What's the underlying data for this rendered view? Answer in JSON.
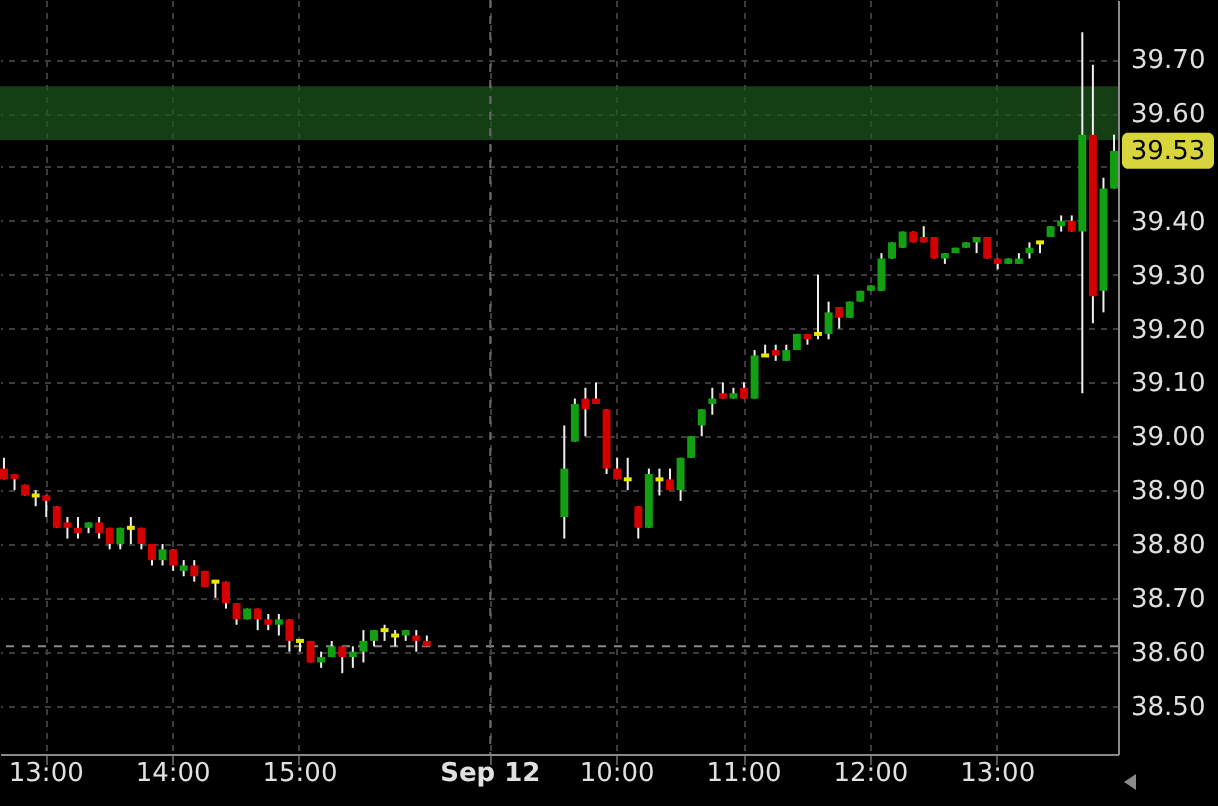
{
  "chart_data": {
    "type": "candlestick",
    "categories": [
      null,
      null,
      null,
      null,
      "13:00",
      null,
      null,
      null,
      null,
      null,
      null,
      null,
      null,
      null,
      null,
      null,
      "14:00",
      null,
      null,
      null,
      null,
      null,
      null,
      null,
      null,
      null,
      null,
      null,
      "15:00",
      null,
      null,
      null,
      null,
      null,
      null,
      null,
      null,
      null,
      null,
      null,
      null,
      null,
      null,
      null,
      null,
      null,
      "Sep 12",
      null,
      null,
      null,
      null,
      null,
      null,
      null,
      null,
      null,
      null,
      null,
      "10:00",
      null,
      null,
      null,
      null,
      null,
      null,
      null,
      null,
      null,
      null,
      null,
      "11:00",
      null,
      null,
      null,
      null,
      null,
      null,
      null,
      null,
      null,
      null,
      null,
      "12:00",
      null,
      null,
      null,
      null,
      null,
      null,
      null,
      null,
      null,
      null,
      null,
      "13:00",
      null,
      null,
      null,
      null,
      null,
      null,
      null,
      null,
      null,
      null,
      null
    ],
    "ohlc": [
      [
        38.94,
        38.96,
        38.92,
        38.92
      ],
      [
        38.93,
        38.93,
        38.9,
        38.92
      ],
      [
        38.91,
        38.91,
        38.89,
        38.89
      ],
      [
        38.89,
        38.9,
        38.87,
        38.89
      ],
      [
        38.89,
        38.89,
        38.85,
        38.88
      ],
      [
        38.87,
        38.87,
        38.83,
        38.83
      ],
      [
        38.84,
        38.85,
        38.81,
        38.83
      ],
      [
        38.83,
        38.85,
        38.81,
        38.82
      ],
      [
        38.83,
        38.84,
        38.82,
        38.84
      ],
      [
        38.84,
        38.85,
        38.81,
        38.82
      ],
      [
        38.83,
        38.83,
        38.79,
        38.8
      ],
      [
        38.8,
        38.83,
        38.79,
        38.83
      ],
      [
        38.83,
        38.85,
        38.8,
        38.83
      ],
      [
        38.83,
        38.83,
        38.79,
        38.8
      ],
      [
        38.8,
        38.8,
        38.76,
        38.77
      ],
      [
        38.77,
        38.8,
        38.76,
        38.79
      ],
      [
        38.79,
        38.79,
        38.75,
        38.76
      ],
      [
        38.75,
        38.77,
        38.74,
        38.76
      ],
      [
        38.76,
        38.77,
        38.73,
        38.74
      ],
      [
        38.75,
        38.75,
        38.72,
        38.72
      ],
      [
        38.73,
        38.73,
        38.7,
        38.73
      ],
      [
        38.73,
        38.73,
        38.68,
        38.69
      ],
      [
        38.69,
        38.69,
        38.65,
        38.66
      ],
      [
        38.66,
        38.68,
        38.66,
        38.68
      ],
      [
        38.68,
        38.68,
        38.64,
        38.66
      ],
      [
        38.66,
        38.67,
        38.64,
        38.65
      ],
      [
        38.65,
        38.67,
        38.63,
        38.66
      ],
      [
        38.66,
        38.66,
        38.6,
        38.62
      ],
      [
        38.62,
        38.62,
        38.6,
        38.62
      ],
      [
        38.62,
        38.62,
        38.58,
        38.58
      ],
      [
        38.58,
        38.6,
        38.57,
        38.59
      ],
      [
        38.59,
        38.62,
        38.59,
        38.61
      ],
      [
        38.61,
        38.61,
        38.56,
        38.59
      ],
      [
        38.59,
        38.61,
        38.57,
        38.6
      ],
      [
        38.6,
        38.64,
        38.58,
        38.62
      ],
      [
        38.62,
        38.64,
        38.61,
        38.64
      ],
      [
        38.64,
        38.65,
        38.62,
        38.64
      ],
      [
        38.63,
        38.64,
        38.61,
        38.63
      ],
      [
        38.63,
        38.64,
        38.62,
        38.64
      ],
      [
        38.63,
        38.64,
        38.6,
        38.62
      ],
      [
        38.62,
        38.63,
        38.61,
        38.61
      ],
      null,
      null,
      null,
      null,
      null,
      null,
      null,
      null,
      null,
      null,
      null,
      null,
      [
        38.85,
        39.02,
        38.81,
        38.94
      ],
      [
        38.99,
        39.07,
        38.99,
        39.06
      ],
      [
        39.07,
        39.09,
        39.0,
        39.05
      ],
      [
        39.07,
        39.1,
        39.06,
        39.06
      ],
      [
        39.05,
        39.05,
        38.93,
        38.94
      ],
      [
        38.94,
        38.96,
        38.92,
        38.92
      ],
      [
        38.92,
        38.96,
        38.9,
        38.92
      ],
      [
        38.87,
        38.87,
        38.81,
        38.83
      ],
      [
        38.83,
        38.94,
        38.83,
        38.93
      ],
      [
        38.92,
        38.94,
        38.89,
        38.92
      ],
      [
        38.92,
        38.94,
        38.9,
        38.9
      ],
      [
        38.9,
        38.96,
        38.88,
        38.96
      ],
      [
        38.96,
        39.0,
        38.96,
        39.0
      ],
      [
        39.02,
        39.05,
        39.0,
        39.05
      ],
      [
        39.06,
        39.09,
        39.04,
        39.07
      ],
      [
        39.08,
        39.1,
        39.07,
        39.07
      ],
      [
        39.07,
        39.09,
        39.07,
        39.08
      ],
      [
        39.09,
        39.1,
        39.07,
        39.07
      ],
      [
        39.07,
        39.16,
        39.07,
        39.15
      ],
      [
        39.15,
        39.17,
        39.15,
        39.15
      ],
      [
        39.16,
        39.17,
        39.14,
        39.15
      ],
      [
        39.14,
        39.17,
        39.14,
        39.16
      ],
      [
        39.16,
        39.19,
        39.16,
        39.19
      ],
      [
        39.19,
        39.19,
        39.17,
        39.18
      ],
      [
        39.19,
        39.3,
        39.18,
        39.19
      ],
      [
        39.19,
        39.25,
        39.18,
        39.23
      ],
      [
        39.24,
        39.24,
        39.2,
        39.22
      ],
      [
        39.22,
        39.25,
        39.22,
        39.25
      ],
      [
        39.25,
        39.27,
        39.25,
        39.27
      ],
      [
        39.27,
        39.28,
        39.27,
        39.28
      ],
      [
        39.27,
        39.34,
        39.27,
        39.33
      ],
      [
        39.33,
        39.36,
        39.33,
        39.36
      ],
      [
        39.35,
        39.38,
        39.35,
        39.38
      ],
      [
        39.38,
        39.38,
        39.36,
        39.36
      ],
      [
        39.37,
        39.39,
        39.36,
        39.36
      ],
      [
        39.37,
        39.37,
        39.33,
        39.33
      ],
      [
        39.33,
        39.34,
        39.32,
        39.34
      ],
      [
        39.34,
        39.35,
        39.34,
        39.35
      ],
      [
        39.35,
        39.36,
        39.35,
        39.36
      ],
      [
        39.36,
        39.37,
        39.34,
        39.37
      ],
      [
        39.37,
        39.37,
        39.33,
        39.33
      ],
      [
        39.33,
        39.33,
        39.31,
        39.32
      ],
      [
        39.32,
        39.33,
        39.32,
        39.33
      ],
      [
        39.32,
        39.34,
        39.32,
        39.33
      ],
      [
        39.34,
        39.36,
        39.33,
        39.35
      ],
      [
        39.36,
        39.36,
        39.34,
        39.36
      ],
      [
        39.37,
        39.39,
        39.37,
        39.39
      ],
      [
        39.39,
        39.41,
        39.38,
        39.4
      ],
      [
        39.4,
        39.41,
        39.38,
        39.38
      ],
      [
        39.38,
        39.75,
        39.08,
        39.56
      ],
      [
        39.56,
        39.69,
        39.21,
        39.26
      ],
      [
        39.27,
        39.48,
        39.23,
        39.46
      ],
      [
        39.46,
        39.56,
        39.46,
        39.53
      ]
    ],
    "colors": [
      "#d40000",
      "#d40000",
      "#d40000",
      "#e8e800",
      "#d40000",
      "#d40000",
      "#d40000",
      "#d40000",
      "#12a012",
      "#d40000",
      "#d40000",
      "#12a012",
      "#e8e800",
      "#d40000",
      "#d40000",
      "#12a012",
      "#d40000",
      "#12a012",
      "#d40000",
      "#d40000",
      "#e8e800",
      "#d40000",
      "#d40000",
      "#12a012",
      "#d40000",
      "#d40000",
      "#12a012",
      "#d40000",
      "#e8e800",
      "#d40000",
      "#12a012",
      "#12a012",
      "#d40000",
      "#12a012",
      "#12a012",
      "#12a012",
      "#e8e800",
      "#e8e800",
      "#12a012",
      "#d40000",
      "#d40000",
      null,
      null,
      null,
      null,
      null,
      null,
      null,
      null,
      null,
      null,
      null,
      null,
      "#12a012",
      "#12a012",
      "#d40000",
      "#d40000",
      "#d40000",
      "#d40000",
      "#e8e800",
      "#d40000",
      "#12a012",
      "#e8e800",
      "#d40000",
      "#12a012",
      "#12a012",
      "#12a012",
      "#12a012",
      "#d40000",
      "#12a012",
      "#d40000",
      "#12a012",
      "#e8e800",
      "#d40000",
      "#12a012",
      "#12a012",
      "#d40000",
      "#e8e800",
      "#12a012",
      "#d40000",
      "#12a012",
      "#12a012",
      "#12a012",
      "#12a012",
      "#12a012",
      "#12a012",
      "#d40000",
      "#d40000",
      "#d40000",
      "#12a012",
      "#12a012",
      "#12a012",
      "#12a012",
      "#d40000",
      "#d40000",
      "#12a012",
      "#12a012",
      "#12a012",
      "#e8e800",
      "#12a012",
      "#12a012",
      "#d40000",
      "#12a012",
      "#d40000",
      "#12a012",
      "#12a012"
    ],
    "ylim": [
      38.41,
      39.81
    ],
    "yticks": [
      {
        "value": 38.5,
        "label": "38.50"
      },
      {
        "value": 38.6,
        "label": "38.60"
      },
      {
        "value": 38.7,
        "label": "38.70"
      },
      {
        "value": 38.8,
        "label": "38.80"
      },
      {
        "value": 38.9,
        "label": "38.90"
      },
      {
        "value": 39.0,
        "label": "39.00"
      },
      {
        "value": 39.1,
        "label": "39.10"
      },
      {
        "value": 39.2,
        "label": "39.20"
      },
      {
        "value": 39.3,
        "label": "39.30"
      },
      {
        "value": 39.4,
        "label": "39.40"
      },
      {
        "value": 39.5,
        "label": null
      },
      {
        "value": 39.6,
        "label": "39.60"
      },
      {
        "value": 39.7,
        "label": "39.70"
      }
    ],
    "grid": true,
    "bands": [
      {
        "axis": "y",
        "from": 39.55,
        "to": 39.65,
        "color": "#1c5a1c"
      }
    ],
    "ref_lines": [
      {
        "axis": "y",
        "value": 38.61,
        "color": "#8a8a8a",
        "line_style": "dashed"
      },
      {
        "axis": "x",
        "value": "Sep 12",
        "color": "#6a6a6a",
        "line_style": "dashed"
      }
    ],
    "annotations": [
      "39.53"
    ]
  }
}
